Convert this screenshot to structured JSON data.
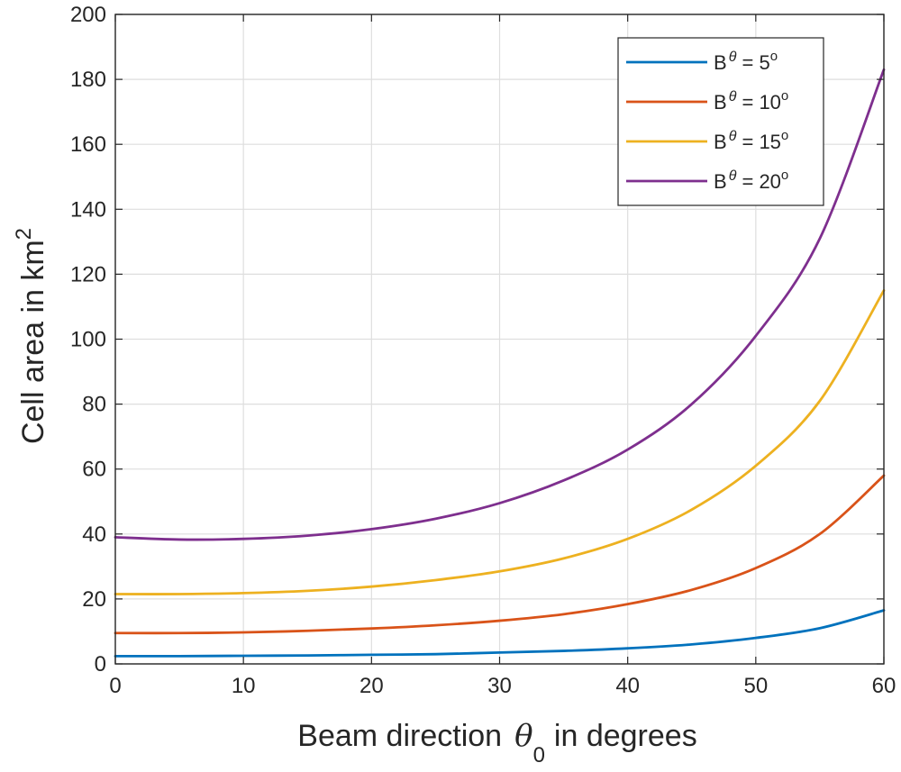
{
  "chart_data": {
    "type": "line",
    "title": "",
    "xlabel": "Beam direction",
    "xlabel_symbol": "θ",
    "xlabel_subscript": "0",
    "xlabel_suffix": "in degrees",
    "ylabel": "Cell area in km",
    "ylabel_superscript": "2",
    "xlim": [
      0,
      60
    ],
    "ylim": [
      0,
      200
    ],
    "x_ticks": [
      0,
      10,
      20,
      30,
      40,
      50,
      60
    ],
    "y_ticks": [
      0,
      20,
      40,
      60,
      80,
      100,
      120,
      140,
      160,
      180,
      200
    ],
    "grid": true,
    "legend_position": "top-right",
    "x": [
      0,
      5,
      10,
      15,
      20,
      25,
      30,
      35,
      40,
      45,
      50,
      55,
      60
    ],
    "series": [
      {
        "name": "B^θ = 5°",
        "legend_base": "B",
        "legend_sup": "θ",
        "legend_value": " = 5",
        "legend_deg": "o",
        "color": "#0072BD",
        "values": [
          2.4,
          2.4,
          2.5,
          2.6,
          2.8,
          3.0,
          3.5,
          4.0,
          4.8,
          6.0,
          8.0,
          11.0,
          16.5
        ]
      },
      {
        "name": "B^θ = 10°",
        "legend_base": "B",
        "legend_sup": "θ",
        "legend_value": " = 10",
        "legend_deg": "o",
        "color": "#D95319",
        "values": [
          9.5,
          9.5,
          9.7,
          10.2,
          10.9,
          11.9,
          13.3,
          15.3,
          18.4,
          22.8,
          29.5,
          40.0,
          58.0
        ]
      },
      {
        "name": "B^θ = 15°",
        "legend_base": "B",
        "legend_sup": "θ",
        "legend_value": " = 15",
        "legend_deg": "o",
        "color": "#EDB120",
        "values": [
          21.5,
          21.5,
          21.8,
          22.5,
          23.8,
          25.8,
          28.5,
          32.5,
          38.5,
          47.5,
          61.0,
          81.0,
          115.0
        ]
      },
      {
        "name": "B^θ = 20°",
        "legend_base": "B",
        "legend_sup": "θ",
        "legend_value": " = 20",
        "legend_deg": "o",
        "color": "#7E2F8E",
        "values": [
          39.0,
          38.3,
          38.5,
          39.5,
          41.5,
          44.7,
          49.5,
          56.5,
          66.0,
          80.0,
          101.0,
          131.0,
          183.0
        ]
      }
    ]
  }
}
